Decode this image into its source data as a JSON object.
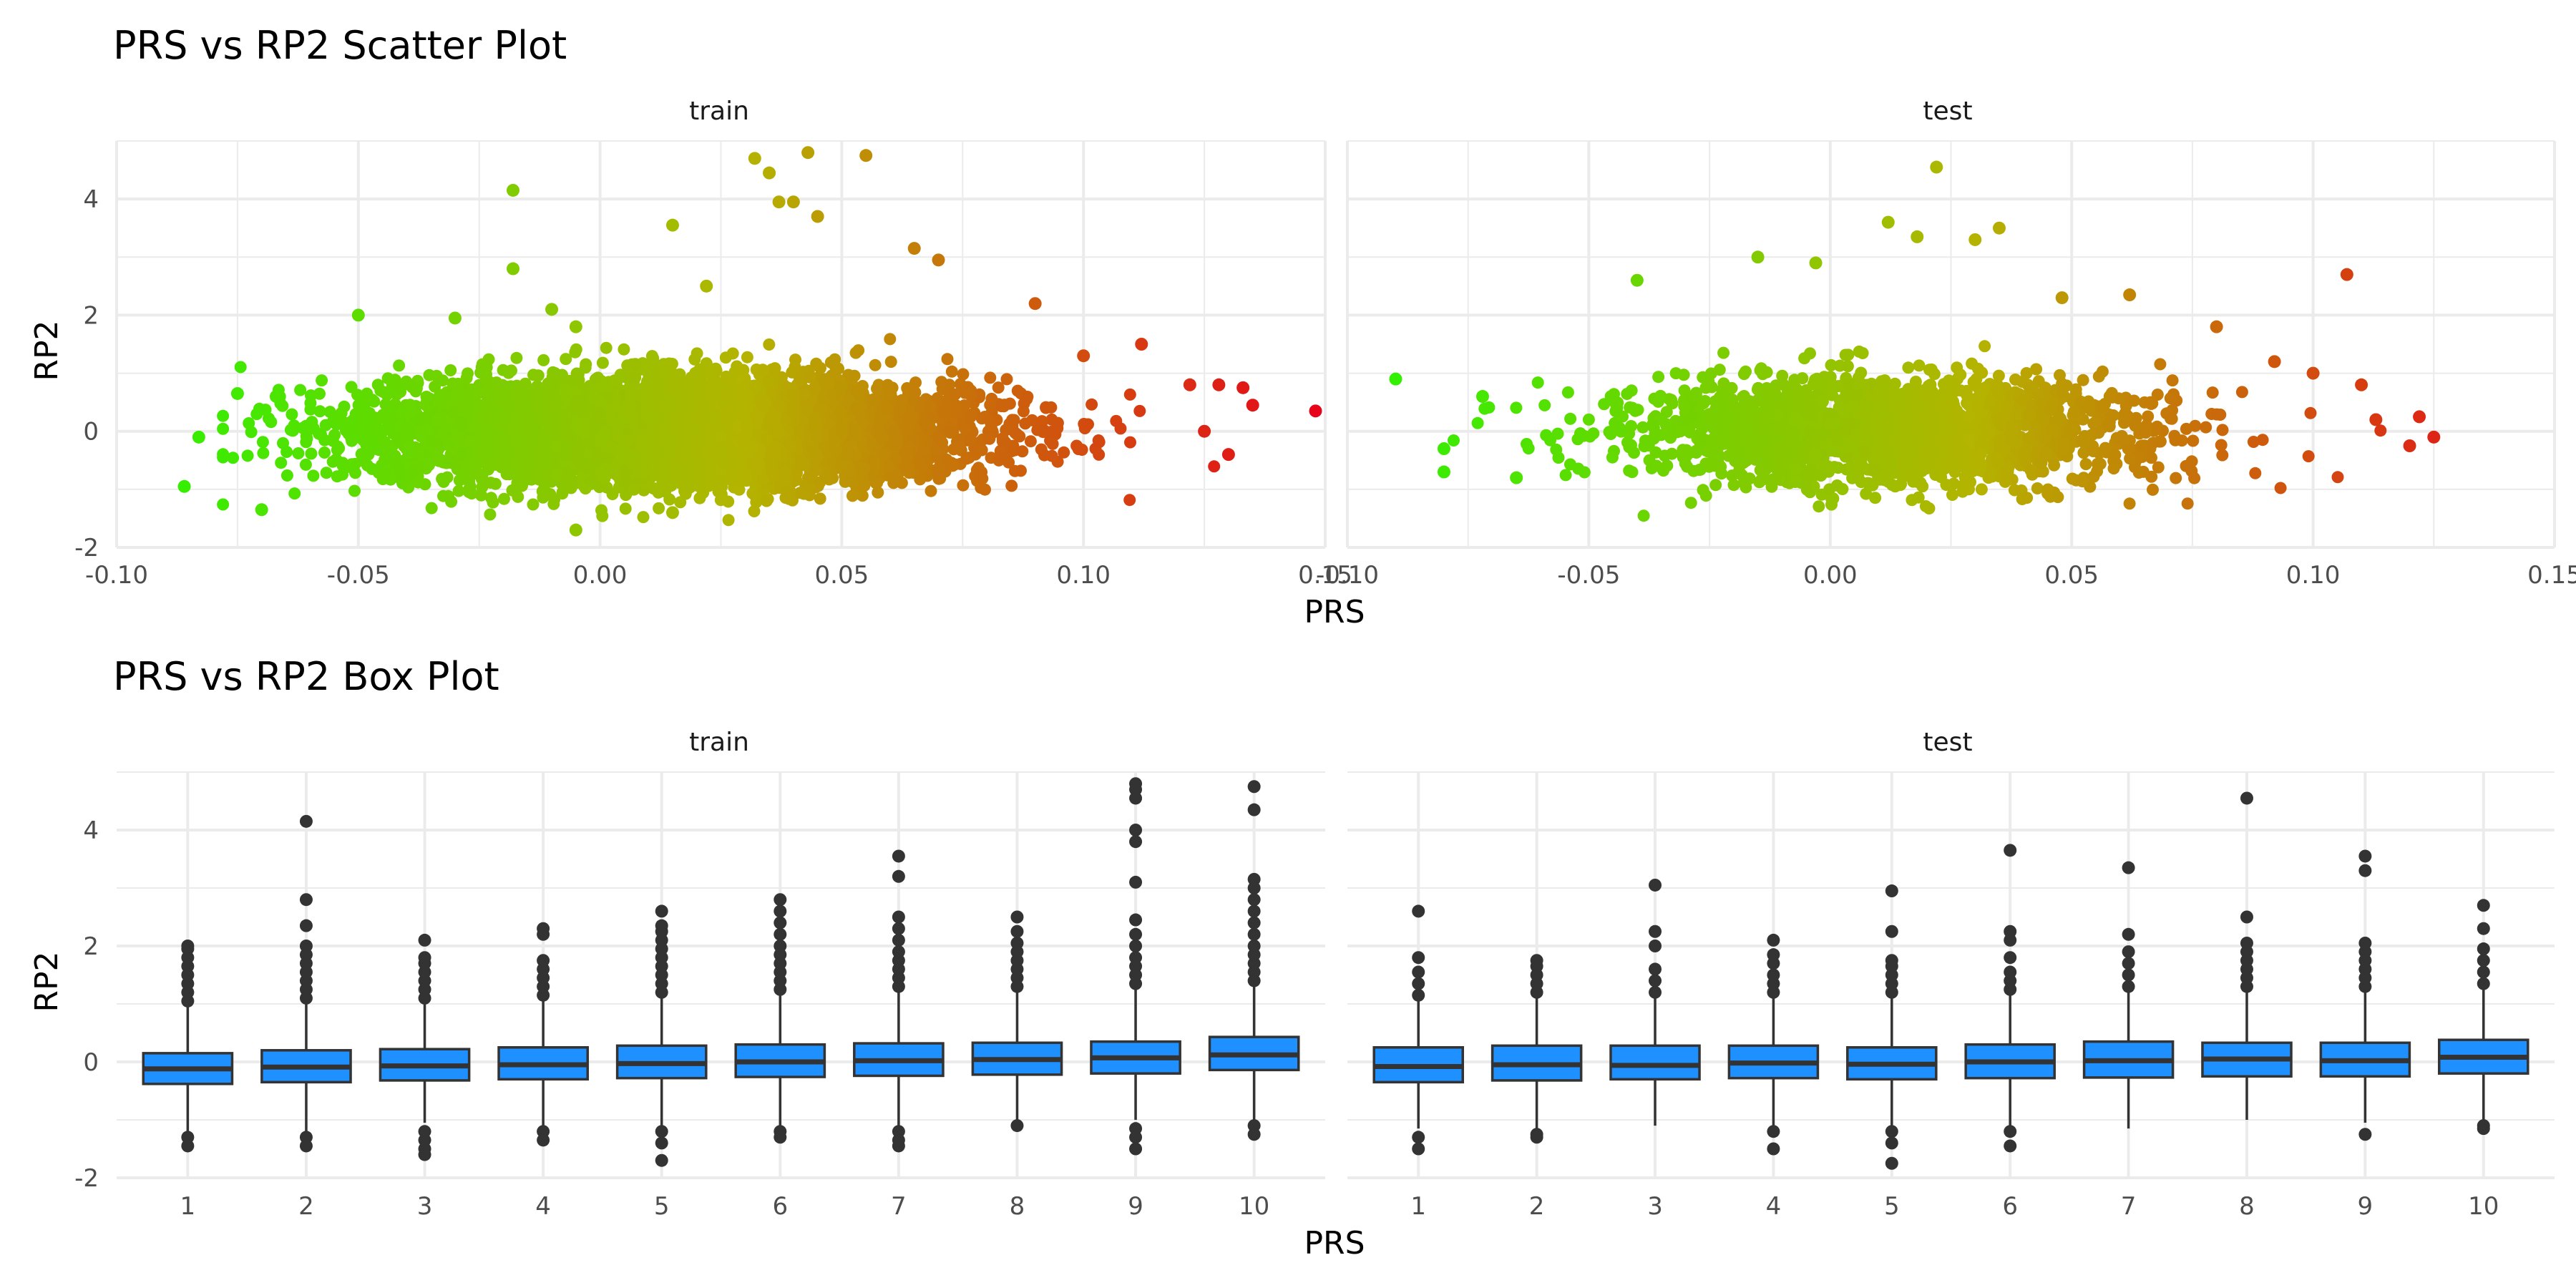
{
  "figure": {
    "scatter_title": "PRS vs RP2 Scatter Plot",
    "box_title": "PRS vs RP2 Box Plot",
    "colors": {
      "scatter_low": "#32f000",
      "scatter_mid": "#b4b400",
      "scatter_high": "#e8001a",
      "box_fill": "#1e90ff",
      "box_stroke": "#333333",
      "outlier": "#333333",
      "grid": "#ebebeb"
    }
  },
  "chart_data": [
    {
      "type": "scatter",
      "title": "PRS vs RP2 Scatter Plot",
      "xlabel": "PRS",
      "ylabel": "RP2",
      "xlim": [
        -0.1,
        0.15
      ],
      "ylim": [
        -2,
        5
      ],
      "x_ticks": [
        "-0.10",
        "-0.05",
        "0.00",
        "0.05",
        "0.10",
        "0.15"
      ],
      "y_ticks": [
        "-2",
        "0",
        "2",
        "4"
      ],
      "x_tick_values": [
        -0.1,
        -0.05,
        0.0,
        0.05,
        0.1,
        0.15
      ],
      "y_tick_values": [
        -2,
        0,
        2,
        4
      ],
      "color_by": "PRS",
      "panels": [
        {
          "name": "train",
          "cloud": {
            "x_mean": 0.015,
            "x_sd": 0.03,
            "y_mean": 0.0,
            "y_sd": 0.45,
            "n": 6000
          },
          "points": [
            [
              -0.086,
              -0.95
            ],
            [
              -0.083,
              -0.1
            ],
            [
              -0.075,
              0.65
            ],
            [
              -0.07,
              -1.35
            ],
            [
              -0.067,
              0.6
            ],
            [
              -0.05,
              2.0
            ],
            [
              -0.03,
              1.95
            ],
            [
              -0.018,
              4.15
            ],
            [
              -0.018,
              2.8
            ],
            [
              -0.01,
              2.1
            ],
            [
              -0.005,
              1.8
            ],
            [
              -0.005,
              -1.7
            ],
            [
              0.015,
              3.55
            ],
            [
              0.015,
              -1.4
            ],
            [
              0.022,
              2.5
            ],
            [
              0.032,
              4.7
            ],
            [
              0.035,
              4.45
            ],
            [
              0.037,
              3.95
            ],
            [
              0.04,
              3.95
            ],
            [
              0.043,
              4.8
            ],
            [
              0.045,
              3.7
            ],
            [
              0.055,
              4.75
            ],
            [
              0.065,
              3.15
            ],
            [
              0.07,
              2.95
            ],
            [
              0.09,
              2.2
            ],
            [
              0.1,
              1.3
            ],
            [
              0.112,
              1.5
            ],
            [
              0.122,
              0.8
            ],
            [
              0.125,
              0.0
            ],
            [
              0.128,
              0.8
            ],
            [
              0.13,
              -0.4
            ],
            [
              0.133,
              0.75
            ],
            [
              0.135,
              0.45
            ],
            [
              0.148,
              0.35
            ]
          ]
        },
        {
          "name": "test",
          "cloud": {
            "x_mean": 0.012,
            "x_sd": 0.028,
            "y_mean": 0.0,
            "y_sd": 0.45,
            "n": 2000
          },
          "points": [
            [
              -0.09,
              0.9
            ],
            [
              -0.08,
              -0.3
            ],
            [
              -0.08,
              -0.7
            ],
            [
              -0.072,
              0.6
            ],
            [
              -0.065,
              -0.8
            ],
            [
              -0.04,
              2.6
            ],
            [
              -0.015,
              3.0
            ],
            [
              -0.003,
              2.9
            ],
            [
              0.012,
              3.6
            ],
            [
              0.018,
              3.35
            ],
            [
              0.022,
              4.55
            ],
            [
              0.03,
              3.3
            ],
            [
              0.035,
              3.5
            ],
            [
              0.048,
              2.3
            ],
            [
              0.062,
              2.35
            ],
            [
              0.08,
              1.8
            ],
            [
              0.092,
              1.2
            ],
            [
              0.1,
              1.0
            ],
            [
              0.107,
              2.7
            ],
            [
              0.11,
              0.8
            ],
            [
              0.113,
              0.2
            ],
            [
              0.12,
              -0.25
            ],
            [
              0.122,
              0.25
            ],
            [
              0.125,
              -0.1
            ]
          ]
        }
      ]
    },
    {
      "type": "box",
      "title": "PRS vs RP2 Box Plot",
      "xlabel": "PRS",
      "ylabel": "RP2",
      "categories": [
        "1",
        "2",
        "3",
        "4",
        "5",
        "6",
        "7",
        "8",
        "9",
        "10"
      ],
      "ylim": [
        -2,
        5
      ],
      "y_ticks": [
        "-2",
        "0",
        "2",
        "4"
      ],
      "y_tick_values": [
        -2,
        0,
        2,
        4
      ],
      "panels": [
        {
          "name": "train",
          "boxes": [
            {
              "q1": -0.38,
              "median": -0.12,
              "q3": 0.15,
              "low": -1.2,
              "high": 0.95
            },
            {
              "q1": -0.35,
              "median": -0.09,
              "q3": 0.2,
              "low": -1.25,
              "high": 1.0
            },
            {
              "q1": -0.32,
              "median": -0.07,
              "q3": 0.22,
              "low": -1.05,
              "high": 1.0
            },
            {
              "q1": -0.3,
              "median": -0.05,
              "q3": 0.25,
              "low": -1.1,
              "high": 1.05
            },
            {
              "q1": -0.28,
              "median": -0.03,
              "q3": 0.28,
              "low": -1.1,
              "high": 1.1
            },
            {
              "q1": -0.26,
              "median": 0.0,
              "q3": 0.3,
              "low": -1.1,
              "high": 1.15
            },
            {
              "q1": -0.24,
              "median": 0.02,
              "q3": 0.32,
              "low": -1.1,
              "high": 1.2
            },
            {
              "q1": -0.22,
              "median": 0.04,
              "q3": 0.33,
              "low": -1.05,
              "high": 1.2
            },
            {
              "q1": -0.2,
              "median": 0.07,
              "q3": 0.35,
              "low": -1.0,
              "high": 1.25
            },
            {
              "q1": -0.14,
              "median": 0.12,
              "q3": 0.43,
              "low": -1.0,
              "high": 1.3
            }
          ],
          "outliers": [
            [
              [
                1.05,
                1.2,
                1.35,
                1.5,
                1.65,
                1.8,
                1.95,
                2.0
              ],
              [
                -1.3,
                -1.45
              ]
            ],
            [
              [
                1.1,
                1.25,
                1.4,
                1.55,
                1.7,
                1.85,
                2.0,
                2.35,
                2.8,
                4.15
              ],
              [
                -1.3,
                -1.45
              ]
            ],
            [
              [
                1.1,
                1.25,
                1.4,
                1.55,
                1.7,
                1.8,
                2.1
              ],
              [
                -1.2,
                -1.35,
                -1.5,
                -1.6
              ]
            ],
            [
              [
                1.15,
                1.3,
                1.45,
                1.6,
                1.75,
                2.2,
                2.3
              ],
              [
                -1.2,
                -1.35
              ]
            ],
            [
              [
                1.2,
                1.35,
                1.5,
                1.65,
                1.8,
                1.95,
                2.1,
                2.25,
                2.35,
                2.6
              ],
              [
                -1.2,
                -1.4,
                -1.7
              ]
            ],
            [
              [
                1.25,
                1.4,
                1.55,
                1.7,
                1.85,
                2.0,
                2.2,
                2.4,
                2.6,
                2.8
              ],
              [
                -1.2,
                -1.3
              ]
            ],
            [
              [
                1.3,
                1.45,
                1.6,
                1.75,
                1.9,
                2.1,
                2.3,
                2.5,
                3.2,
                3.55
              ],
              [
                -1.2,
                -1.35,
                -1.45
              ]
            ],
            [
              [
                1.3,
                1.45,
                1.6,
                1.75,
                1.9,
                2.05,
                2.25,
                2.5
              ],
              [
                -1.1
              ]
            ],
            [
              [
                1.35,
                1.5,
                1.65,
                1.8,
                2.0,
                2.2,
                2.45,
                3.1,
                3.8,
                4.0,
                4.55,
                4.7,
                4.8
              ],
              [
                -1.15,
                -1.3,
                -1.5
              ]
            ],
            [
              [
                1.4,
                1.55,
                1.7,
                1.85,
                2.0,
                2.2,
                2.4,
                2.6,
                2.8,
                3.0,
                3.15,
                4.35,
                4.75
              ],
              [
                -1.1,
                -1.25
              ]
            ]
          ]
        },
        {
          "name": "test",
          "boxes": [
            {
              "q1": -0.35,
              "median": -0.08,
              "q3": 0.25,
              "low": -1.15,
              "high": 1.05
            },
            {
              "q1": -0.32,
              "median": -0.05,
              "q3": 0.28,
              "low": -1.2,
              "high": 1.1
            },
            {
              "q1": -0.3,
              "median": -0.06,
              "q3": 0.28,
              "low": -1.1,
              "high": 1.1
            },
            {
              "q1": -0.28,
              "median": -0.02,
              "q3": 0.28,
              "low": -1.1,
              "high": 1.1
            },
            {
              "q1": -0.3,
              "median": -0.04,
              "q3": 0.25,
              "low": -1.1,
              "high": 1.1
            },
            {
              "q1": -0.28,
              "median": 0.0,
              "q3": 0.3,
              "low": -1.1,
              "high": 1.15
            },
            {
              "q1": -0.27,
              "median": 0.02,
              "q3": 0.35,
              "low": -1.15,
              "high": 1.2
            },
            {
              "q1": -0.25,
              "median": 0.05,
              "q3": 0.33,
              "low": -1.0,
              "high": 1.2
            },
            {
              "q1": -0.25,
              "median": 0.02,
              "q3": 0.33,
              "low": -1.05,
              "high": 1.2
            },
            {
              "q1": -0.2,
              "median": 0.08,
              "q3": 0.38,
              "low": -1.05,
              "high": 1.3
            }
          ],
          "outliers": [
            [
              [
                1.15,
                1.35,
                1.55,
                1.8,
                2.6
              ],
              [
                -1.3,
                -1.5
              ]
            ],
            [
              [
                1.2,
                1.35,
                1.5,
                1.65,
                1.75
              ],
              [
                -1.25,
                -1.3
              ]
            ],
            [
              [
                1.2,
                1.4,
                1.6,
                2.0,
                2.25,
                3.05
              ],
              []
            ],
            [
              [
                1.2,
                1.35,
                1.5,
                1.7,
                1.85,
                2.1
              ],
              [
                -1.2,
                -1.5
              ]
            ],
            [
              [
                1.2,
                1.35,
                1.5,
                1.65,
                1.75,
                2.25,
                2.95
              ],
              [
                -1.2,
                -1.4,
                -1.75
              ]
            ],
            [
              [
                1.25,
                1.4,
                1.55,
                1.8,
                2.1,
                2.25,
                3.65
              ],
              [
                -1.2,
                -1.45
              ]
            ],
            [
              [
                1.3,
                1.5,
                1.7,
                1.9,
                2.2,
                3.35
              ],
              []
            ],
            [
              [
                1.3,
                1.45,
                1.6,
                1.75,
                1.9,
                2.05,
                2.5,
                4.55
              ],
              []
            ],
            [
              [
                1.3,
                1.45,
                1.6,
                1.75,
                1.9,
                2.05,
                3.3,
                3.55
              ],
              [
                -1.25
              ]
            ],
            [
              [
                1.35,
                1.55,
                1.75,
                1.95,
                2.3,
                2.7
              ],
              [
                -1.1,
                -1.15
              ]
            ]
          ]
        }
      ]
    }
  ]
}
